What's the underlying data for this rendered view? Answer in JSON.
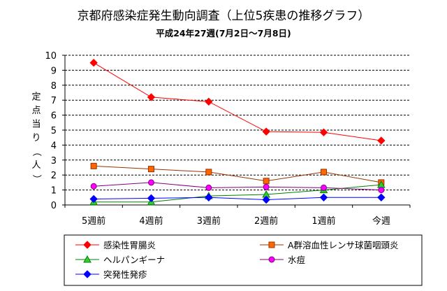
{
  "chart_data": {
    "type": "line",
    "title": "京都府感染症発生動向調査（上位5疾患の推移グラフ）",
    "subtitle": "平成24年27週(7月2日～7月8日)",
    "ylabel": "定点当り（人）",
    "xlabel": "",
    "categories": [
      "5週前",
      "4週前",
      "3週前",
      "2週前",
      "1週前",
      "今週"
    ],
    "ylim": [
      0,
      10
    ],
    "yticks": [
      "0",
      "1",
      "2",
      "3",
      "4",
      "5",
      "6",
      "7",
      "8",
      "9",
      "10"
    ],
    "grid": "horizontal-dashed",
    "legend_position": "bottom",
    "series": [
      {
        "name": "感染性胃腸炎",
        "color": "#ff0000",
        "marker": "diamond",
        "marker_color": "#ff0000",
        "values": [
          9.5,
          7.2,
          6.9,
          4.9,
          4.85,
          4.3
        ]
      },
      {
        "name": "A群溶血性レンサ球菌咽頭炎",
        "color": "#993300",
        "marker": "square",
        "marker_color": "#ff6600",
        "values": [
          2.6,
          2.4,
          2.2,
          1.6,
          2.2,
          1.5
        ]
      },
      {
        "name": "ヘルパンギーナ",
        "color": "#008000",
        "marker": "triangle",
        "marker_color": "#33cc33",
        "values": [
          0.2,
          0.2,
          0.6,
          0.7,
          1.0,
          1.35
        ]
      },
      {
        "name": "水痘",
        "color": "#800080",
        "marker": "circle",
        "marker_color": "#ff00ff",
        "values": [
          1.25,
          1.5,
          1.15,
          1.2,
          1.15,
          1.0
        ]
      },
      {
        "name": "突発性発疹",
        "color": "#0000ff",
        "marker": "diamond",
        "marker_color": "#0000ff",
        "values": [
          0.4,
          0.45,
          0.5,
          0.35,
          0.5,
          0.5
        ]
      }
    ]
  }
}
